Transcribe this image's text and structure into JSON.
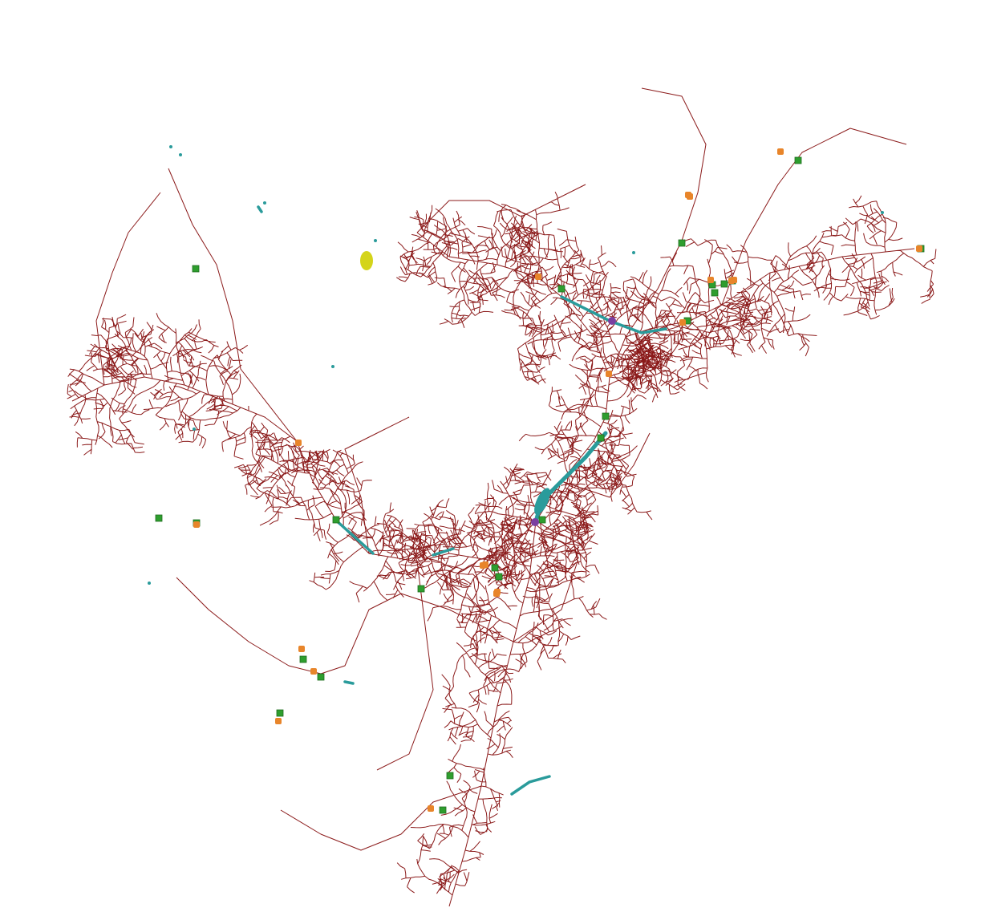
{
  "map": {
    "background_color": "#ffffff",
    "colors": {
      "stream_network": "#8b1a1a",
      "main_channel": "#2a9b9b",
      "lake": "#d4d41a",
      "station_green": "#2e9e2e",
      "station_orange": "#e8852a",
      "junction_purple": "#7a3fa0"
    },
    "stream_network": {
      "feature": "stream-network"
    },
    "main_channels": {
      "feature": "main-channel"
    },
    "water_body": {
      "feature": "lake"
    },
    "stations": {
      "green_count": 24,
      "orange_count": 20,
      "junction_count": 2
    }
  }
}
